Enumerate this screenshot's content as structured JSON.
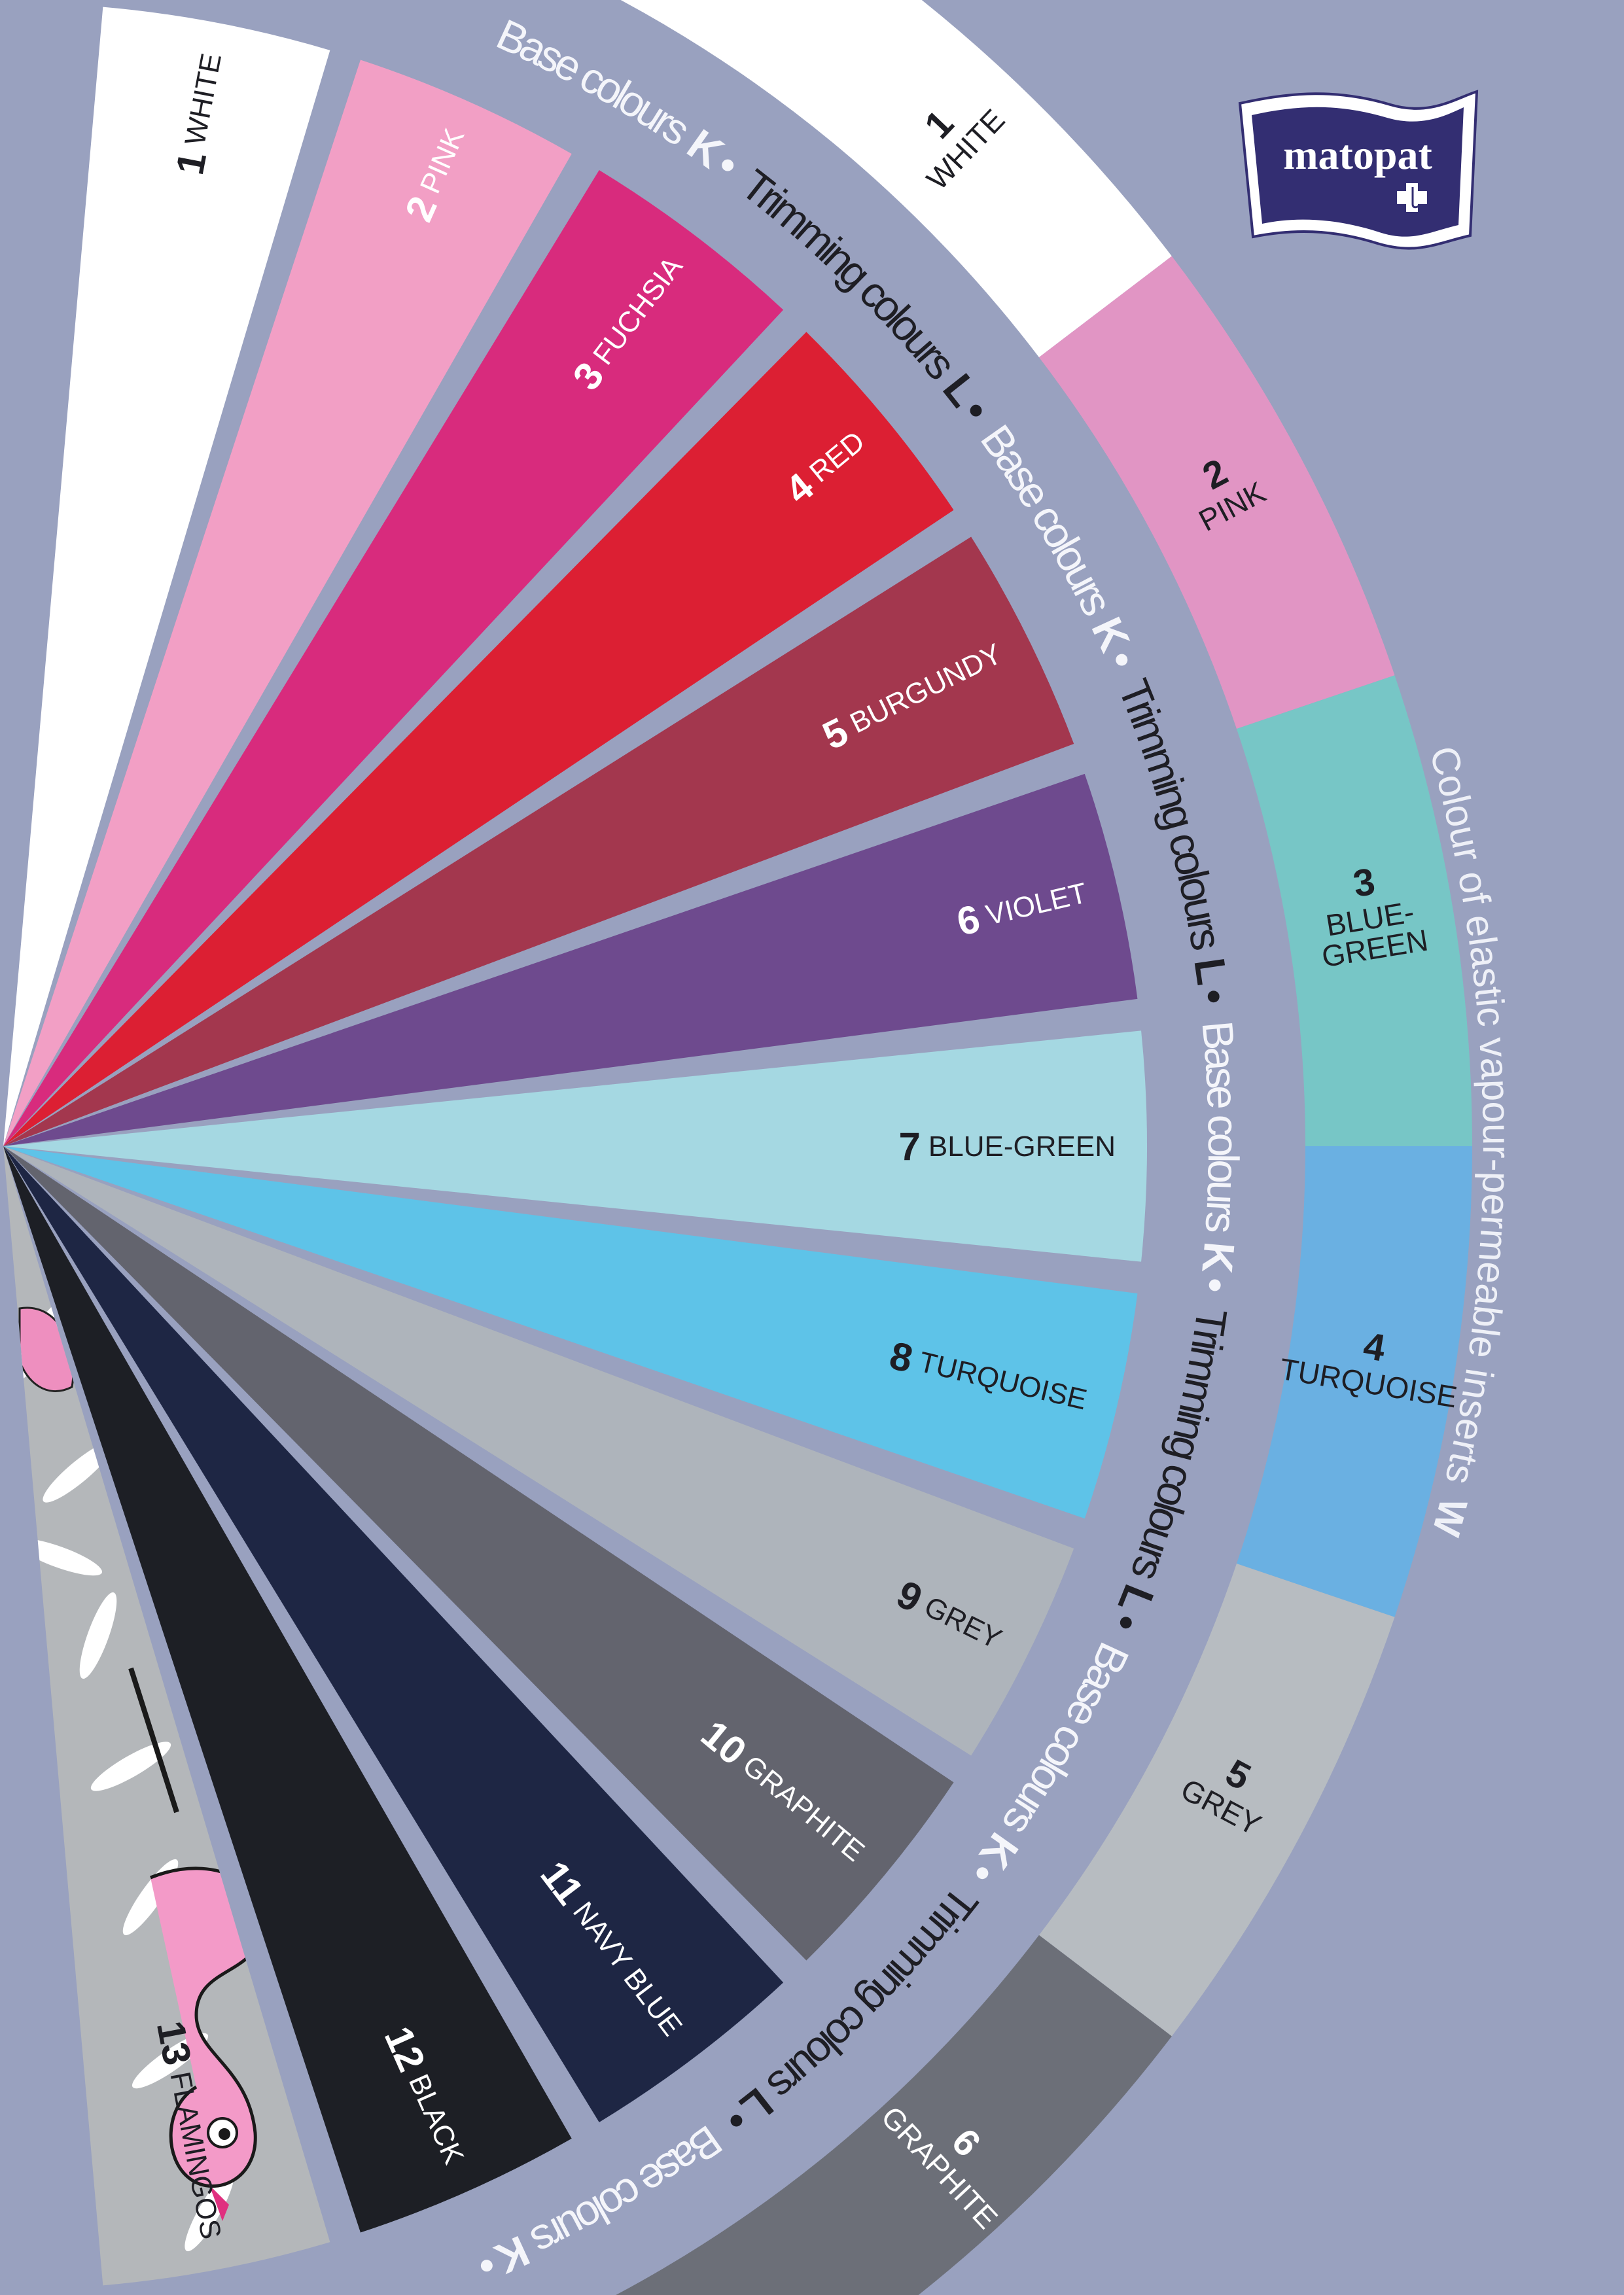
{
  "colors": {
    "background": "#99a1bf",
    "logo_navy": "#332e72",
    "light_text": "#f4f5fa",
    "dark_text": "#1e1e24"
  },
  "logo": {
    "text": "matopat"
  },
  "base_colours": [
    {
      "number": "1",
      "name": "WHITE",
      "color": "#ffffff",
      "text": "#1e1e24"
    },
    {
      "number": "2",
      "name": "PINK",
      "color": "#f29fc5",
      "text": "#ffffff"
    },
    {
      "number": "3",
      "name": "FUCHSIA",
      "color": "#d82b7d",
      "text": "#ffffff"
    },
    {
      "number": "4",
      "name": "RED",
      "color": "#dc1f33",
      "text": "#ffffff"
    },
    {
      "number": "5",
      "name": "BURGUNDY",
      "color": "#a3374e",
      "text": "#ffffff"
    },
    {
      "number": "6",
      "name": "VIOLET",
      "color": "#6e4a8e",
      "text": "#ffffff"
    },
    {
      "number": "7",
      "name": "BLUE-GREEN",
      "color": "#a5d8e2",
      "text": "#1e1e24"
    },
    {
      "number": "8",
      "name": "TURQUOISE",
      "color": "#5ec3e8",
      "text": "#1e1e24"
    },
    {
      "number": "9",
      "name": "GREY",
      "color": "#aeb4bb",
      "text": "#1e1e24"
    },
    {
      "number": "10",
      "name": "GRAPHITE",
      "color": "#63646e",
      "text": "#ffffff"
    },
    {
      "number": "11",
      "name": "NAVY BLUE",
      "color": "#1e2644",
      "text": "#ffffff"
    },
    {
      "number": "12",
      "name": "BLACK",
      "color": "#1d1f25",
      "text": "#ffffff"
    },
    {
      "number": "13",
      "name": "FLAMINGOS",
      "color": "#b4b7ba",
      "text": "#1e1e24",
      "pattern": "flamingo"
    }
  ],
  "elastic_colours": [
    {
      "number": "1",
      "name_lines": [
        "WHITE"
      ],
      "color": "#ffffff",
      "text": "#1e1e24"
    },
    {
      "number": "2",
      "name_lines": [
        "PINK"
      ],
      "color": "#e195c4",
      "text": "#1e1e24"
    },
    {
      "number": "3",
      "name_lines": [
        "BLUE-",
        "GREEN"
      ],
      "color": "#77c6c6",
      "text": "#1e1e24"
    },
    {
      "number": "4",
      "name_lines": [
        "TURQUOISE"
      ],
      "color": "#6ab0e2",
      "text": "#1e1e24"
    },
    {
      "number": "5",
      "name_lines": [
        "GREY"
      ],
      "color": "#b7bcc1",
      "text": "#1e1e24"
    },
    {
      "number": "6",
      "name_lines": [
        "GRAPHITE"
      ],
      "color": "#6c6f78",
      "text": "#ffffff"
    }
  ],
  "ring_caption": {
    "base_label": "Base colours",
    "base_letter": "K",
    "trim_label": "Trimming colours",
    "trim_letter": "L",
    "separator": "•",
    "base_color": "#f4f5fa",
    "trim_color": "#1e1e24",
    "sequence": [
      "base",
      "trim",
      "base",
      "trim",
      "base",
      "trim",
      "base",
      "trim",
      "base"
    ]
  },
  "elastic_caption": {
    "text": "Colour of elastic vapour-permeable inserts",
    "letter": "W"
  }
}
